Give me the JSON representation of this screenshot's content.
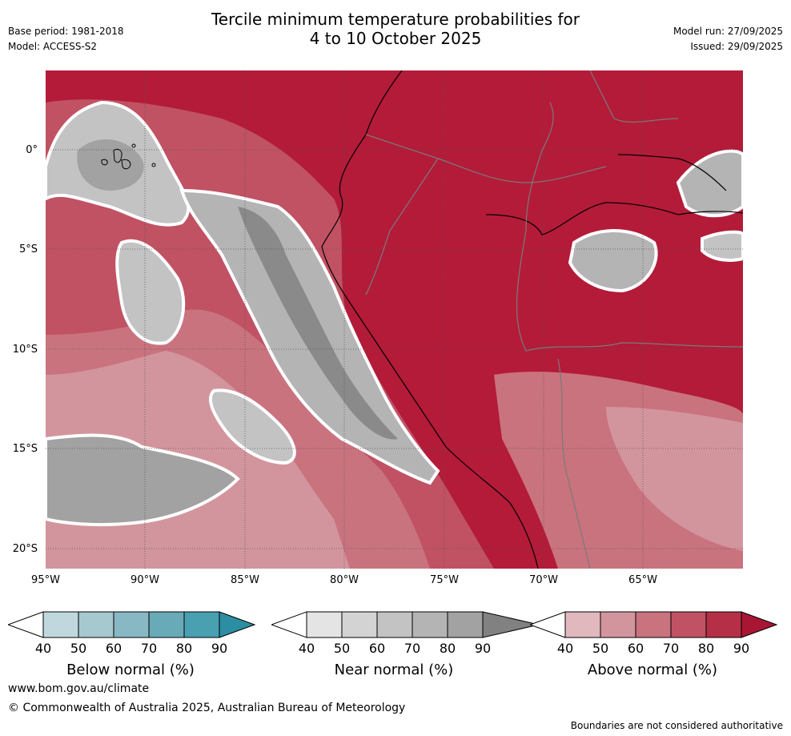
{
  "header": {
    "title_line1": "Tercile minimum temperature probabilities for",
    "title_line2": "4 to 10 October 2025",
    "base_period": "Base period: 1981-2018",
    "model": "Model: ACCESS-S2",
    "model_run": "Model run: 27/09/2025",
    "issued": "Issued: 29/09/2025"
  },
  "map": {
    "lat_labels": [
      "0°",
      "5°S",
      "10°S",
      "15°S",
      "20°S"
    ],
    "lon_labels": [
      "95°W",
      "90°W",
      "85°W",
      "80°W",
      "75°W",
      "70°W",
      "65°W"
    ],
    "colors": {
      "above_dominant": "#b31b39",
      "near_gray": "#8a8a8a",
      "ocean_pink": "#c8505f"
    }
  },
  "colorbars": [
    {
      "name": "Below normal (%)",
      "ticks": [
        "40",
        "50",
        "60",
        "70",
        "80",
        "90"
      ],
      "colors": [
        "#ffffff",
        "#c0d8dd",
        "#a6c8cf",
        "#88b8c3",
        "#68aab7",
        "#48a0b0",
        "#2c8ea2"
      ]
    },
    {
      "name": "Near normal (%)",
      "ticks": [
        "40",
        "50",
        "60",
        "70",
        "80",
        "90"
      ],
      "colors": [
        "#ffffff",
        "#e4e4e4",
        "#d3d3d3",
        "#c3c3c3",
        "#b4b4b4",
        "#a2a2a2",
        "#818181"
      ]
    },
    {
      "name": "Above normal (%)",
      "ticks": [
        "40",
        "50",
        "60",
        "70",
        "80",
        "90"
      ],
      "colors": [
        "#ffffff",
        "#e1b8be",
        "#d3959d",
        "#c9737f",
        "#c05263",
        "#b53046",
        "#a81634"
      ]
    }
  ],
  "footer": {
    "website": "www.bom.gov.au/climate",
    "copyright": "© Commonwealth of Australia 2025, Australian Bureau of Meteorology",
    "disclaimer": "Boundaries are not considered authoritative"
  }
}
